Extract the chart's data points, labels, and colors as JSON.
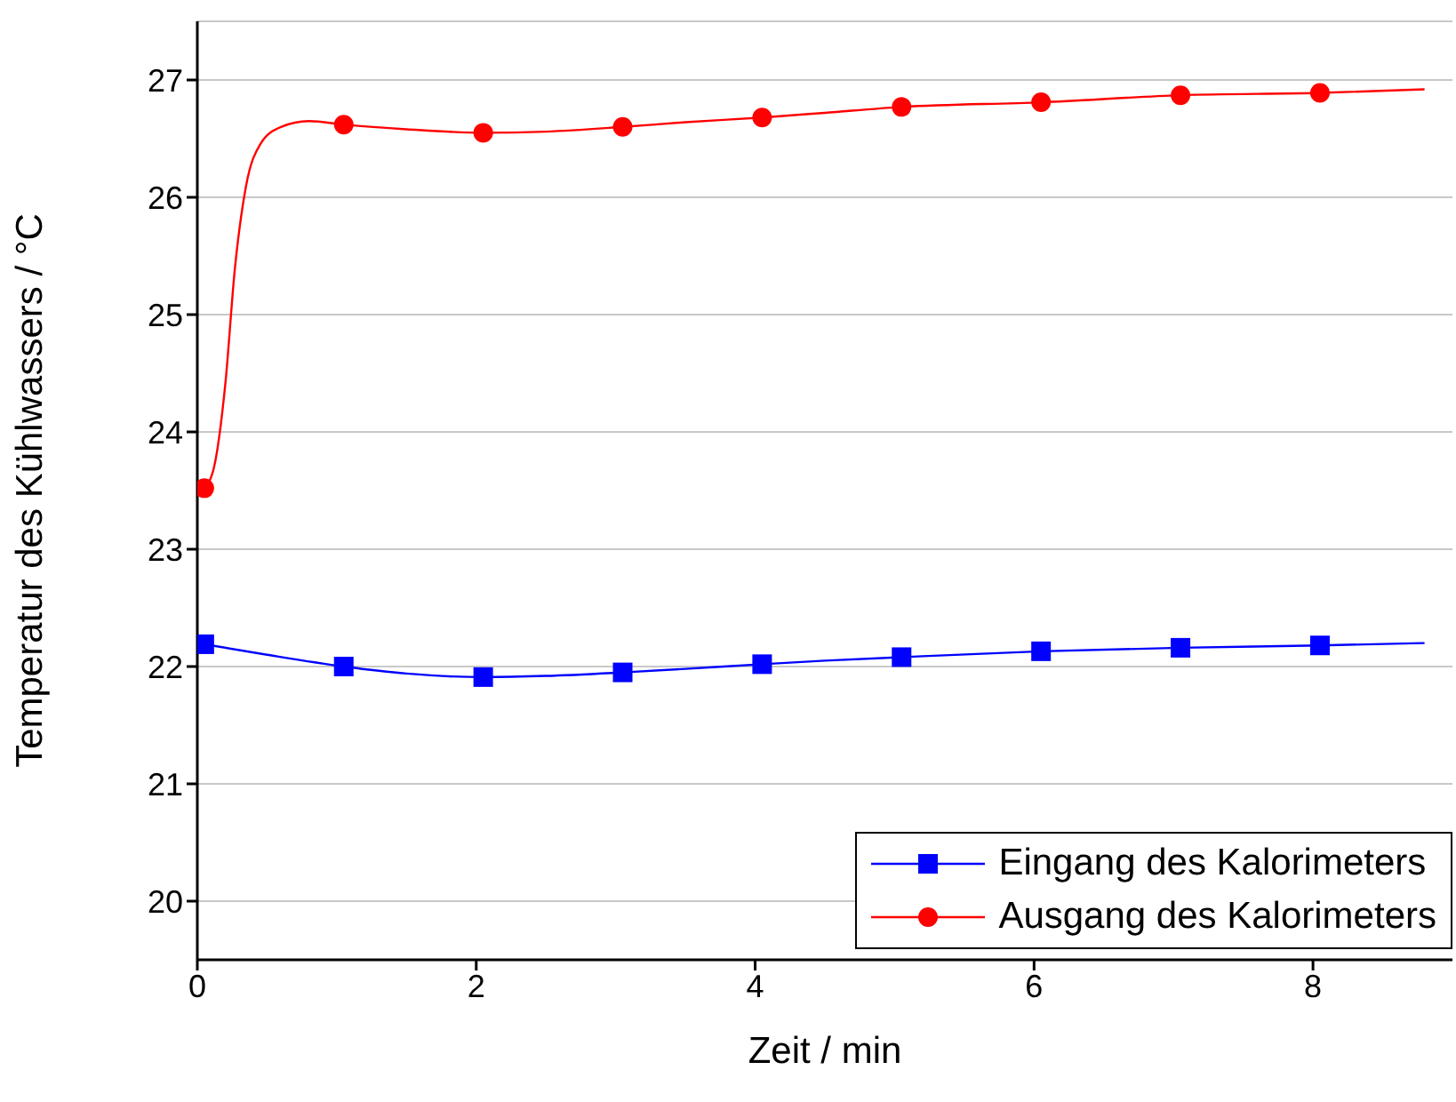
{
  "chart_data": {
    "type": "line",
    "xlabel": "Zeit / min",
    "ylabel": "Temperatur des Kühlwassers / °C",
    "xlim": [
      0,
      9
    ],
    "ylim": [
      19.5,
      27.5
    ],
    "xticks": [
      0,
      2,
      4,
      6,
      8
    ],
    "yticks": [
      20,
      21,
      22,
      23,
      24,
      25,
      26,
      27
    ],
    "grid": "y",
    "legend": "bottom right",
    "line_style": "solid",
    "series": [
      {
        "type": "line",
        "color": "#0000ff",
        "marker": "none",
        "x": [
          0.05,
          0.5,
          1.05,
          1.5,
          2.05,
          2.5,
          3.05,
          3.5,
          4.05,
          4.5,
          5.05,
          6.05,
          7.05,
          8.05,
          8.8
        ],
        "values": [
          22.19,
          22.1,
          22.0,
          21.94,
          21.91,
          21.92,
          21.95,
          21.98,
          22.02,
          22.05,
          22.08,
          22.13,
          22.16,
          22.18,
          22.2
        ]
      },
      {
        "type": "line",
        "color": "#ff0000",
        "marker": "none",
        "x": [
          0.05,
          0.12,
          0.2,
          0.27,
          0.35,
          0.45,
          0.6,
          0.8,
          1.05,
          1.5,
          2.05,
          2.5,
          3.05,
          3.5,
          4.05,
          4.5,
          5.05,
          6.05,
          7.05,
          8.05,
          8.8
        ],
        "values": [
          23.52,
          23.7,
          24.4,
          25.4,
          26.1,
          26.45,
          26.6,
          26.65,
          26.62,
          26.58,
          26.55,
          26.56,
          26.6,
          26.64,
          26.68,
          26.72,
          26.77,
          26.81,
          26.87,
          26.89,
          26.92
        ]
      },
      {
        "type": "scatter",
        "name": "Eingang des Kalorimeters",
        "color": "#0000ff",
        "marker": "square",
        "x": [
          0.05,
          1.05,
          2.05,
          3.05,
          4.05,
          5.05,
          6.05,
          7.05,
          8.05
        ],
        "values": [
          22.19,
          22.0,
          21.91,
          21.95,
          22.02,
          22.08,
          22.13,
          22.16,
          22.18
        ]
      },
      {
        "type": "scatter",
        "name": "Ausgang des Kalorimeters",
        "color": "#ff0000",
        "marker": "circle",
        "x": [
          0.05,
          1.05,
          2.05,
          3.05,
          4.05,
          5.05,
          6.05,
          7.05,
          8.05
        ],
        "values": [
          23.52,
          26.62,
          26.55,
          26.6,
          26.68,
          26.77,
          26.81,
          26.87,
          26.89
        ]
      }
    ]
  }
}
